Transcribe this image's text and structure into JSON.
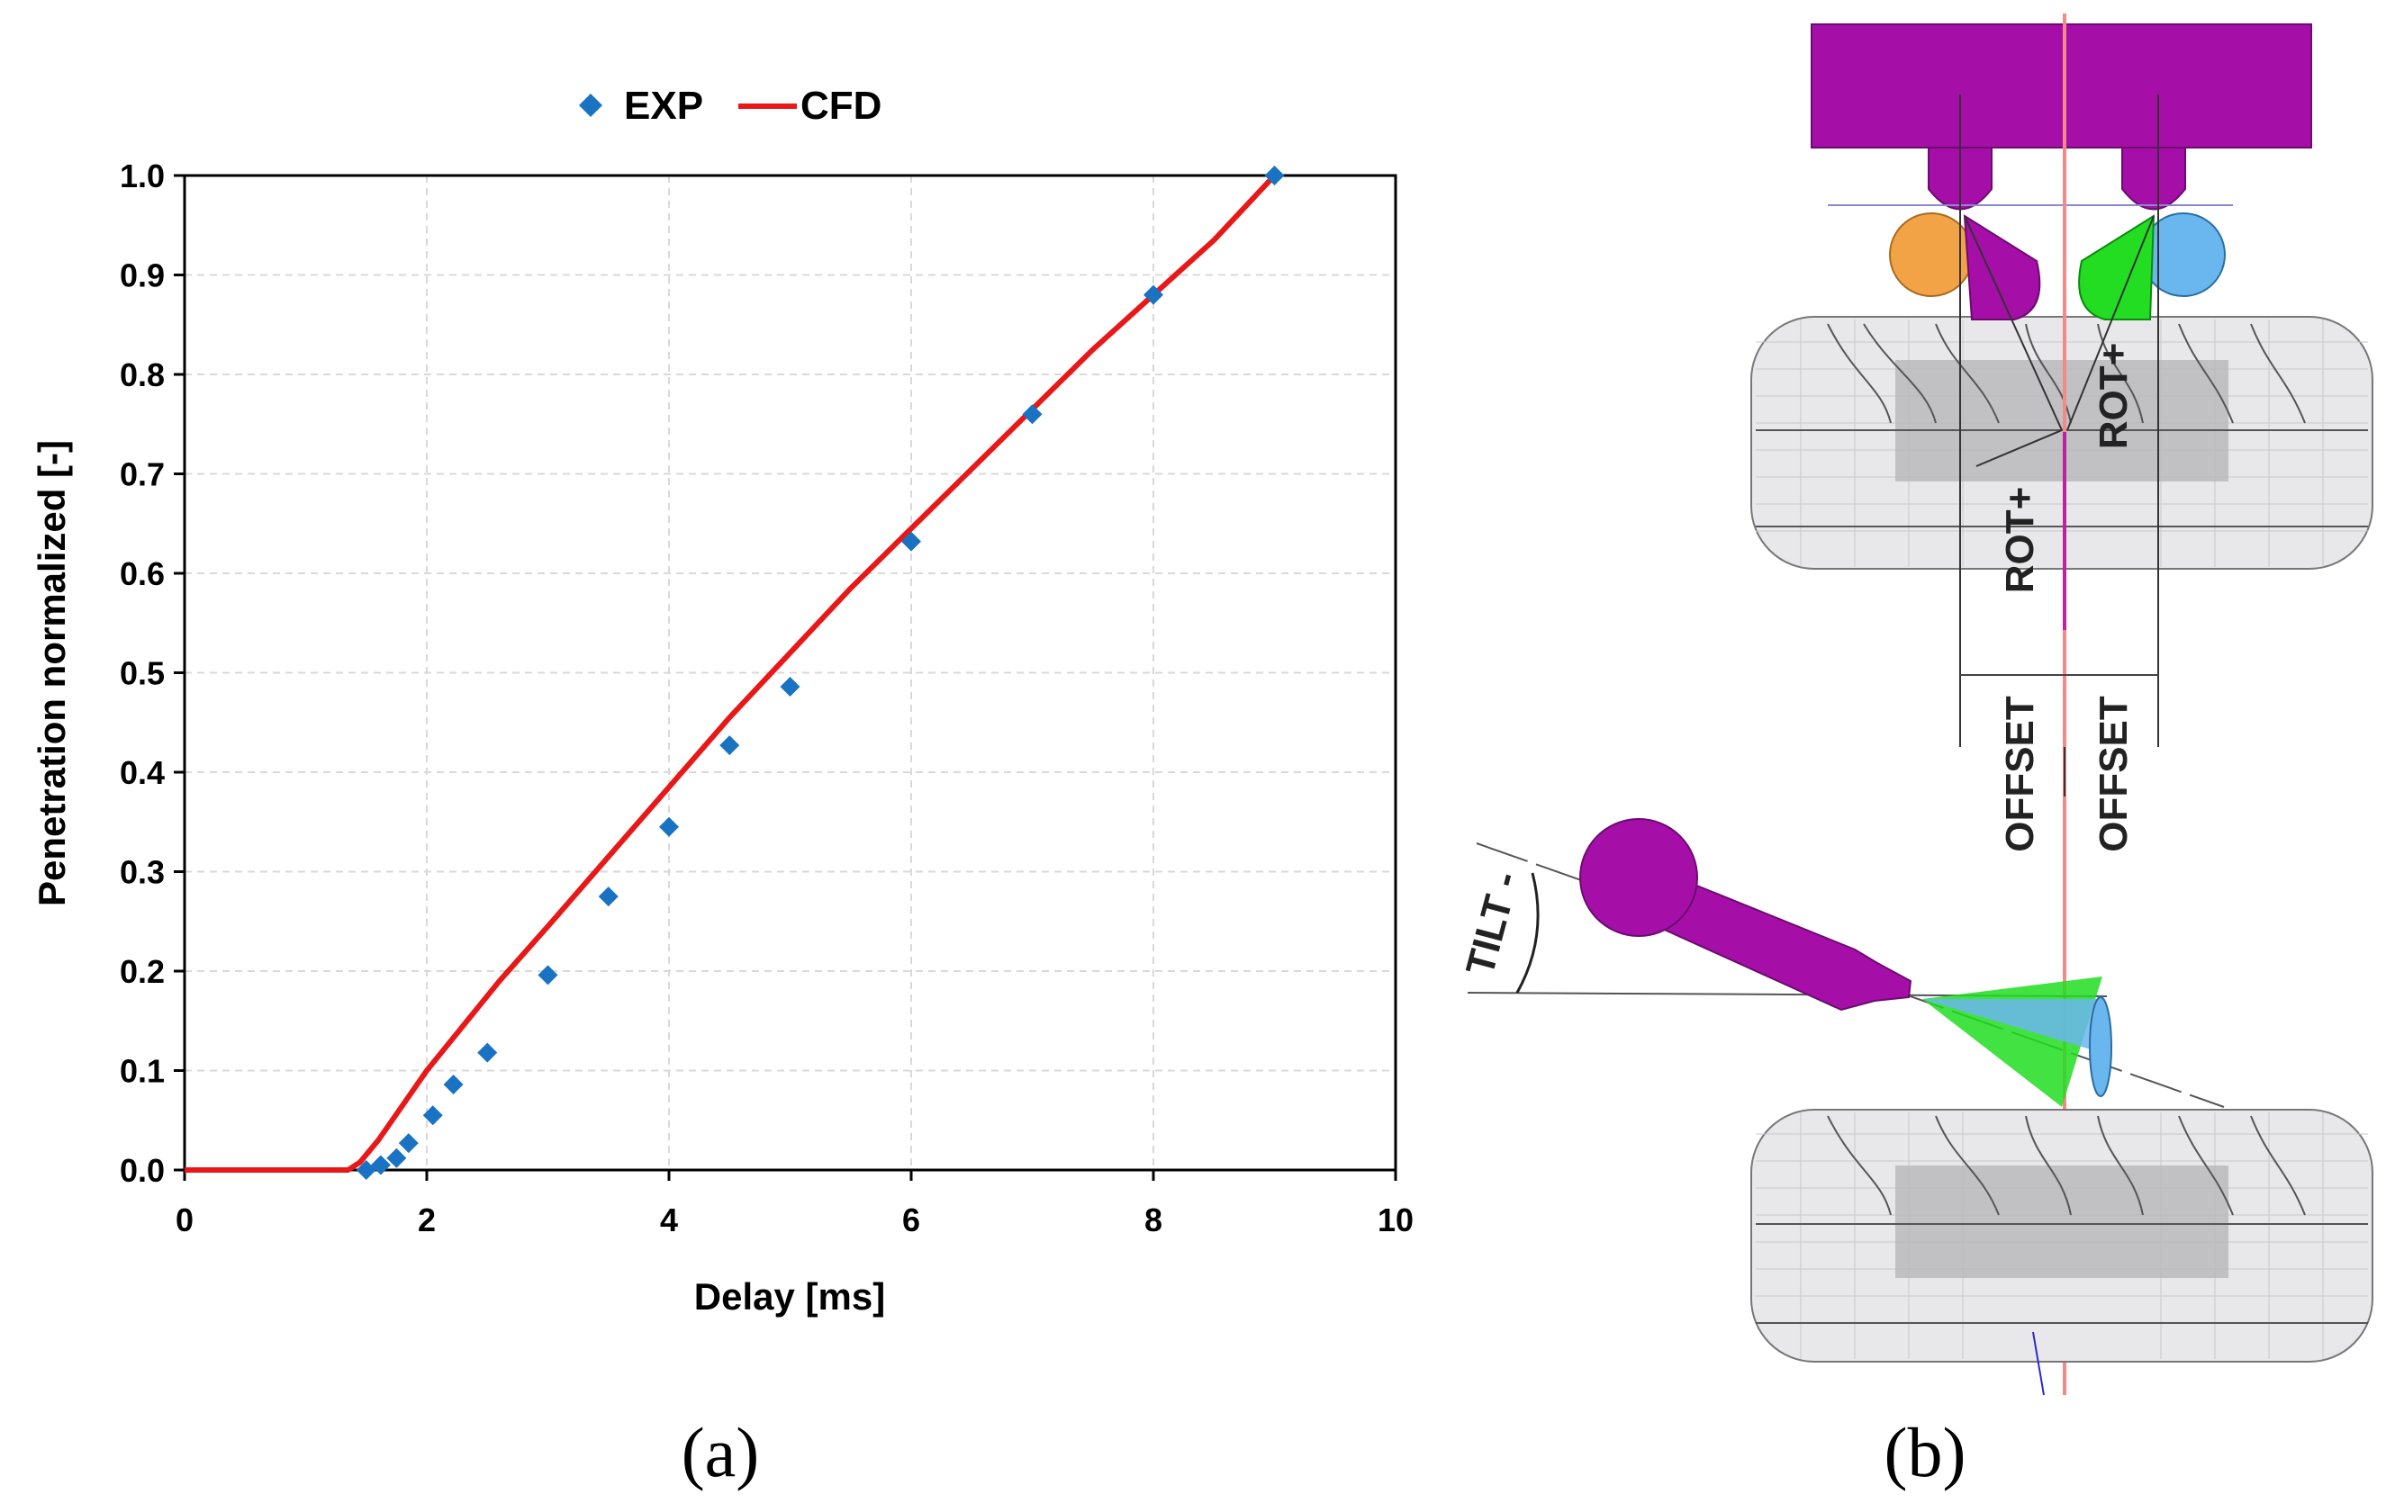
{
  "panels": {
    "a": "(a)",
    "b": "(b)"
  },
  "colors": {
    "exp": "#1a72c2",
    "cfd": "#e81818",
    "grid": "#d9d9d9",
    "injector": "#a50fa8",
    "spray_green": "#22dd22",
    "spray_blue": "#6ab6ee",
    "spray_orange": "#f2a345"
  },
  "chart_data": {
    "type": "scatter",
    "title": "",
    "xlabel": "Delay [ms]",
    "ylabel": "Penetration normalized [-]",
    "xlim": [
      0,
      10
    ],
    "ylim": [
      0,
      1.0
    ],
    "x_ticks": [
      0,
      2,
      4,
      6,
      8,
      10
    ],
    "y_ticks": [
      "0.0",
      "0.1",
      "0.2",
      "0.3",
      "0.4",
      "0.5",
      "0.6",
      "0.7",
      "0.8",
      "0.9",
      "1.0"
    ],
    "grid": true,
    "legend": [
      "EXP",
      "CFD"
    ],
    "legend_position": "top-center",
    "series": [
      {
        "name": "EXP",
        "kind": "markers",
        "marker": "diamond",
        "x": [
          1.5,
          1.62,
          1.75,
          1.85,
          2.05,
          2.22,
          2.5,
          3.0,
          3.5,
          4.0,
          4.5,
          5.0,
          6.0,
          7.0,
          8.0,
          9.0
        ],
        "y": [
          0.0,
          0.005,
          0.012,
          0.027,
          0.055,
          0.086,
          0.118,
          0.196,
          0.275,
          0.345,
          0.427,
          0.486,
          0.632,
          0.76,
          0.88,
          1.0
        ]
      },
      {
        "name": "CFD",
        "kind": "line",
        "x": [
          0.0,
          1.35,
          1.45,
          1.6,
          1.8,
          2.0,
          2.3,
          2.6,
          3.0,
          3.5,
          4.0,
          4.5,
          5.0,
          5.5,
          6.0,
          6.5,
          7.0,
          7.5,
          8.0,
          8.5,
          9.0
        ],
        "y": [
          0.0,
          0.0,
          0.008,
          0.03,
          0.065,
          0.1,
          0.145,
          0.19,
          0.245,
          0.315,
          0.385,
          0.455,
          0.52,
          0.585,
          0.645,
          0.705,
          0.765,
          0.825,
          0.88,
          0.935,
          1.0
        ]
      }
    ]
  },
  "diagram": {
    "labels": {
      "rot_left": "ROT+",
      "rot_right": "ROT+",
      "offset_left": "OFFSET",
      "offset_right": "OFFSET",
      "tilt": "TILT -"
    }
  }
}
